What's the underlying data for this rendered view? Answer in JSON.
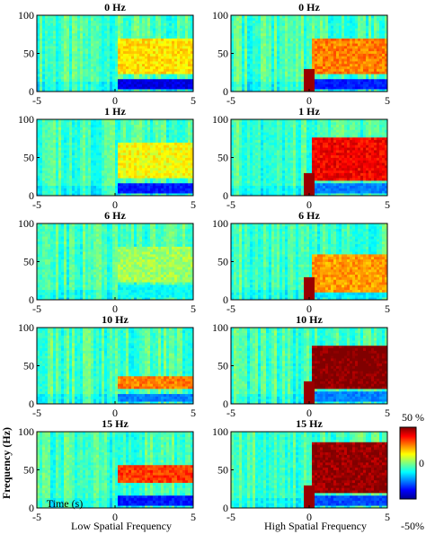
{
  "chart_data": {
    "type": "heatmap",
    "xlabel": "Time (s)",
    "ylabel": "Frequency (Hz)",
    "xlim": [
      -5,
      5
    ],
    "ylim": [
      0,
      100
    ],
    "xticks": [
      "-5",
      "0",
      "5"
    ],
    "yticks": [
      "0",
      "50",
      "100"
    ],
    "columns": [
      "Low Spatial Frequency",
      "High Spatial Frequency"
    ],
    "rows": [
      "0 Hz",
      "1 Hz",
      "6 Hz",
      "10 Hz",
      "15 Hz"
    ],
    "colorbar": {
      "max_label": "50 %",
      "mid_label": "0",
      "min_label": "-50%",
      "range": [
        -50,
        50
      ],
      "colormap": "jet"
    },
    "panels": [
      {
        "title": "0 Hz",
        "column": "Low Spatial Frequency",
        "post_high_band": [
          25,
          70
        ],
        "post_high_level": 15,
        "post_low_band": [
          5,
          15
        ],
        "post_low_level": -40,
        "onset_burst": false
      },
      {
        "title": "0 Hz",
        "column": "High Spatial Frequency",
        "post_high_band": [
          25,
          70
        ],
        "post_high_level": 25,
        "post_low_band": [
          5,
          15
        ],
        "post_low_level": -35,
        "onset_burst": true
      },
      {
        "title": "1 Hz",
        "column": "Low Spatial Frequency",
        "post_high_band": [
          25,
          70
        ],
        "post_high_level": 12,
        "post_low_band": [
          5,
          15
        ],
        "post_low_level": -35,
        "onset_burst": false
      },
      {
        "title": "1 Hz",
        "column": "High Spatial Frequency",
        "post_high_band": [
          20,
          75
        ],
        "post_high_level": 38,
        "post_low_band": [
          5,
          15
        ],
        "post_low_level": -25,
        "onset_burst": true
      },
      {
        "title": "6 Hz",
        "column": "Low Spatial Frequency",
        "post_high_band": [
          25,
          70
        ],
        "post_high_level": 3,
        "post_low_band": [
          5,
          20
        ],
        "post_low_level": -12,
        "onset_burst": false
      },
      {
        "title": "6 Hz",
        "column": "High Spatial Frequency",
        "post_high_band": [
          10,
          60
        ],
        "post_high_level": 22,
        "post_low_band": [
          5,
          10
        ],
        "post_low_level": -15,
        "onset_burst": true
      },
      {
        "title": "10 Hz",
        "column": "Low Spatial Frequency",
        "post_high_band": [
          20,
          35
        ],
        "post_high_level": 25,
        "post_low_band": [
          5,
          12
        ],
        "post_low_level": -25,
        "onset_burst": false
      },
      {
        "title": "10 Hz",
        "column": "High Spatial Frequency",
        "post_high_band": [
          20,
          75
        ],
        "post_high_level": 50,
        "post_low_band": [
          5,
          15
        ],
        "post_low_level": -25,
        "onset_burst": true
      },
      {
        "title": "15 Hz",
        "column": "Low Spatial Frequency",
        "post_high_band": [
          35,
          55
        ],
        "post_high_level": 32,
        "post_low_band": [
          5,
          15
        ],
        "post_low_level": -35,
        "onset_burst": false
      },
      {
        "title": "15 Hz",
        "column": "High Spatial Frequency",
        "post_high_band": [
          20,
          85
        ],
        "post_high_level": 48,
        "post_low_band": [
          5,
          15
        ],
        "post_low_level": -30,
        "onset_burst": true
      }
    ]
  }
}
